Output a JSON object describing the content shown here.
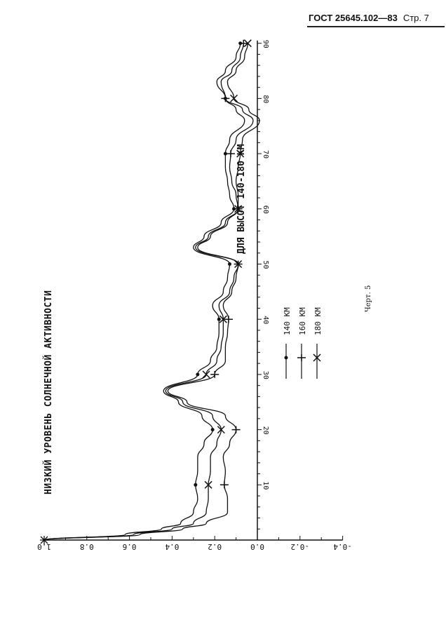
{
  "header": {
    "standard": "ГОСТ 25645.102—83",
    "page": "Стр. 7"
  },
  "figure_caption": "Черт. 5",
  "chart_data": {
    "type": "line",
    "title": "НИЗКИЙ УРОВЕНЬ СОЛНЕЧНОЙ АКТИВНОСТИ",
    "subtitle": "ДЛЯ ВЫСОТ 140-180 КМ",
    "orientation": "rotated 90°",
    "xlim": [
      0,
      90
    ],
    "ylim": [
      -0.4,
      1.0
    ],
    "x_ticks": [
      "10",
      "20",
      "30",
      "40",
      "50",
      "60",
      "70",
      "80",
      "90"
    ],
    "y_ticks": [
      "1.0",
      "0.8",
      "0.6",
      "0.4",
      "0.2",
      "0.0",
      "-0.2",
      "-0.4"
    ],
    "grid": false,
    "legend_placement": "center-right",
    "x": [
      0,
      1,
      2,
      3,
      5,
      7.5,
      10,
      12.5,
      15,
      17.5,
      20,
      22.5,
      25,
      27,
      30,
      32.5,
      35,
      37.5,
      40,
      42.5,
      45,
      47.5,
      50,
      53,
      55,
      57.5,
      60,
      62.5,
      65,
      67.5,
      70,
      72.5,
      76,
      78,
      80,
      83,
      85,
      87.5,
      90
    ],
    "series": [
      {
        "name": "140 КМ",
        "marker": "dot",
        "values": [
          1.0,
          0.62,
          0.45,
          0.36,
          0.3,
          0.28,
          0.29,
          0.28,
          0.28,
          0.25,
          0.21,
          0.26,
          0.37,
          0.44,
          0.28,
          0.22,
          0.19,
          0.18,
          0.18,
          0.21,
          0.16,
          0.14,
          0.13,
          0.3,
          0.25,
          0.17,
          0.11,
          0.13,
          0.14,
          0.15,
          0.15,
          0.13,
          0.06,
          0.1,
          0.15,
          0.19,
          0.15,
          0.1,
          0.08
        ]
      },
      {
        "name": "160 КМ",
        "marker": "plus",
        "values": [
          1.0,
          0.55,
          0.35,
          0.24,
          0.14,
          0.14,
          0.155,
          0.15,
          0.16,
          0.13,
          0.1,
          0.15,
          0.33,
          0.42,
          0.2,
          0.15,
          0.15,
          0.14,
          0.135,
          0.16,
          0.12,
          0.1,
          0.09,
          0.28,
          0.22,
          0.14,
          0.09,
          0.1,
          0.12,
          0.13,
          0.125,
          0.1,
          0.02,
          0.07,
          0.15,
          0.17,
          0.12,
          0.08,
          0.065
        ]
      },
      {
        "name": "180 КМ",
        "marker": "x",
        "values": [
          1.0,
          0.58,
          0.4,
          0.3,
          0.24,
          0.23,
          0.23,
          0.22,
          0.22,
          0.19,
          0.17,
          0.21,
          0.35,
          0.43,
          0.24,
          0.19,
          0.17,
          0.16,
          0.16,
          0.18,
          0.13,
          0.11,
          0.09,
          0.29,
          0.23,
          0.15,
          0.09,
          0.09,
          0.1,
          0.09,
          0.08,
          0.07,
          -0.01,
          0.04,
          0.11,
          0.14,
          0.1,
          0.06,
          0.045
        ]
      }
    ]
  }
}
